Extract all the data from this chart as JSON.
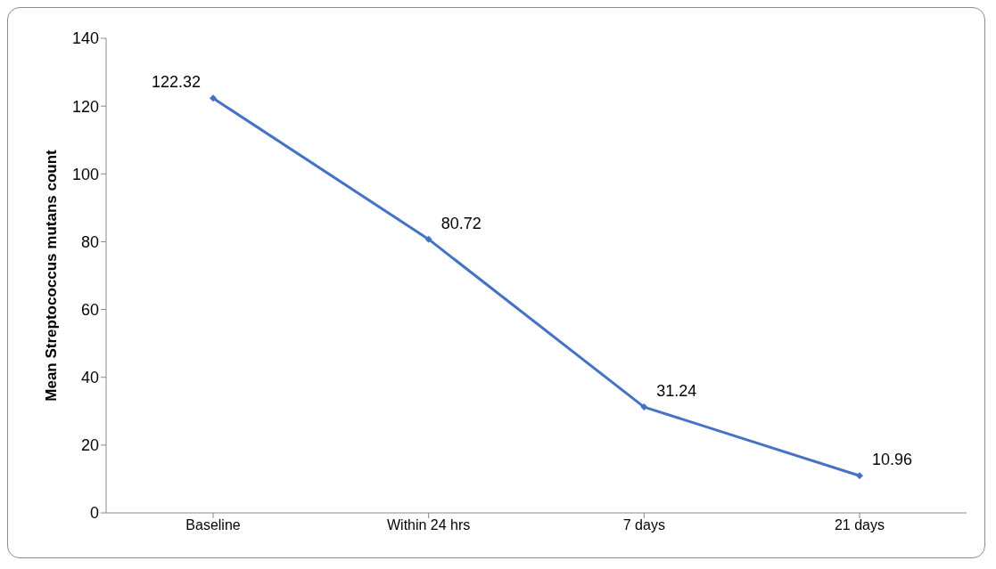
{
  "chart_data": {
    "type": "line",
    "ylabel": "Mean Streptococcus mutans count",
    "categories": [
      "Baseline",
      "Within 24 hrs",
      "7 days",
      "21 days"
    ],
    "series": [
      {
        "color": "#4472c4",
        "values": [
          122.32,
          80.72,
          31.24,
          10.96
        ]
      }
    ],
    "ylim": [
      0,
      140
    ],
    "yticks": [
      0,
      20,
      40,
      60,
      80,
      100,
      120,
      140
    ],
    "grid": false,
    "legend": false,
    "marker": "diamond",
    "line_style": "solid",
    "data_labels": true
  }
}
